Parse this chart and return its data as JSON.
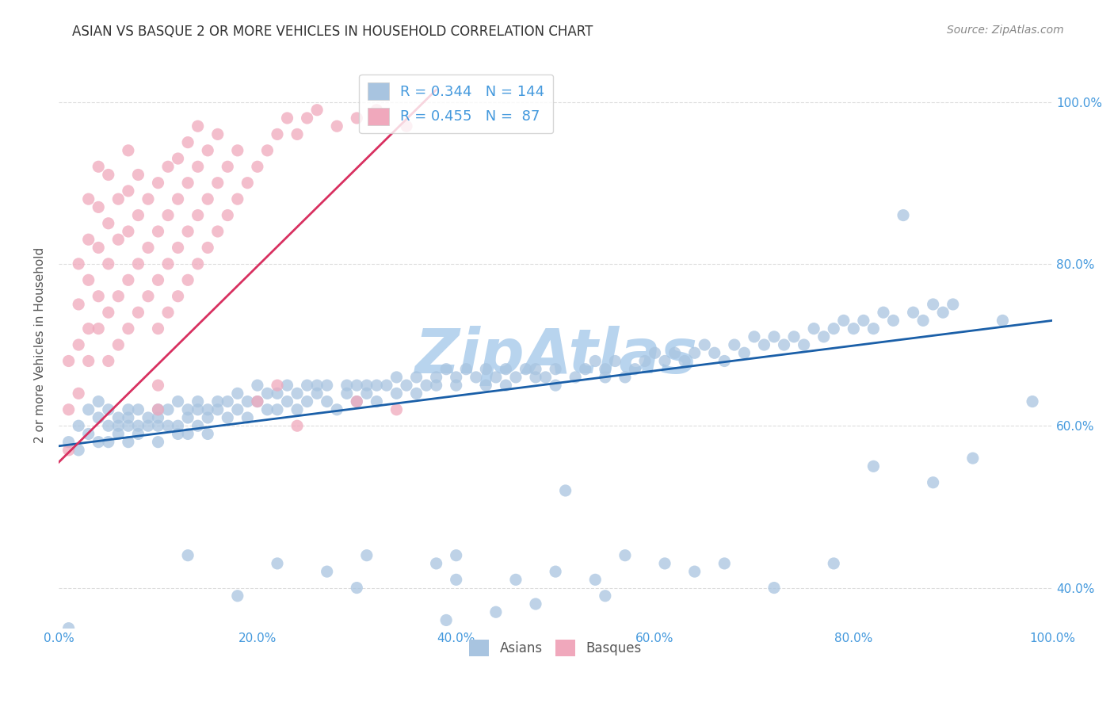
{
  "title": "ASIAN VS BASQUE 2 OR MORE VEHICLES IN HOUSEHOLD CORRELATION CHART",
  "source": "Source: ZipAtlas.com",
  "ylabel": "2 or more Vehicles in Household",
  "watermark": "ZipAtlas",
  "xlim": [
    0.0,
    1.0
  ],
  "ylim": [
    0.35,
    1.05
  ],
  "x_ticks": [
    0.0,
    0.2,
    0.4,
    0.6,
    0.8,
    1.0
  ],
  "x_tick_labels": [
    "0.0%",
    "20.0%",
    "40.0%",
    "60.0%",
    "80.0%",
    "100.0%"
  ],
  "y_ticks": [
    0.4,
    0.6,
    0.8,
    1.0
  ],
  "y_tick_labels": [
    "40.0%",
    "60.0%",
    "80.0%",
    "100.0%"
  ],
  "legend_labels": [
    "Asians",
    "Basques"
  ],
  "legend_R": [
    "0.344",
    "0.455"
  ],
  "legend_N": [
    "144",
    "87"
  ],
  "asian_color": "#a8c4e0",
  "basque_color": "#f0a8bc",
  "asian_line_color": "#1a5fa8",
  "basque_line_color": "#d83060",
  "title_color": "#333333",
  "axis_label_color": "#555555",
  "tick_color": "#4499dd",
  "grid_color": "#dddddd",
  "watermark_color": "#b8d4ee",
  "asian_scatter_x": [
    0.01,
    0.02,
    0.02,
    0.03,
    0.03,
    0.04,
    0.04,
    0.04,
    0.05,
    0.05,
    0.05,
    0.06,
    0.06,
    0.06,
    0.07,
    0.07,
    0.07,
    0.07,
    0.08,
    0.08,
    0.08,
    0.09,
    0.09,
    0.1,
    0.1,
    0.1,
    0.1,
    0.11,
    0.11,
    0.12,
    0.12,
    0.12,
    0.13,
    0.13,
    0.13,
    0.14,
    0.14,
    0.14,
    0.15,
    0.15,
    0.15,
    0.16,
    0.16,
    0.17,
    0.17,
    0.18,
    0.18,
    0.19,
    0.19,
    0.2,
    0.2,
    0.21,
    0.21,
    0.22,
    0.22,
    0.23,
    0.23,
    0.24,
    0.24,
    0.25,
    0.25,
    0.26,
    0.26,
    0.27,
    0.27,
    0.28,
    0.29,
    0.29,
    0.3,
    0.3,
    0.31,
    0.31,
    0.32,
    0.32,
    0.33,
    0.34,
    0.34,
    0.35,
    0.36,
    0.36,
    0.37,
    0.38,
    0.38,
    0.39,
    0.4,
    0.4,
    0.41,
    0.42,
    0.43,
    0.43,
    0.44,
    0.45,
    0.45,
    0.46,
    0.47,
    0.48,
    0.48,
    0.49,
    0.5,
    0.5,
    0.51,
    0.52,
    0.53,
    0.54,
    0.55,
    0.55,
    0.56,
    0.57,
    0.58,
    0.59,
    0.6,
    0.61,
    0.62,
    0.63,
    0.64,
    0.65,
    0.66,
    0.67,
    0.68,
    0.69,
    0.7,
    0.71,
    0.72,
    0.73,
    0.74,
    0.75,
    0.76,
    0.77,
    0.78,
    0.79,
    0.8,
    0.81,
    0.82,
    0.83,
    0.84,
    0.85,
    0.86,
    0.87,
    0.88,
    0.89,
    0.9,
    0.95,
    0.98
  ],
  "asian_scatter_y": [
    0.58,
    0.6,
    0.57,
    0.62,
    0.59,
    0.61,
    0.58,
    0.63,
    0.6,
    0.58,
    0.62,
    0.59,
    0.61,
    0.6,
    0.62,
    0.6,
    0.58,
    0.61,
    0.59,
    0.62,
    0.6,
    0.61,
    0.6,
    0.6,
    0.62,
    0.58,
    0.61,
    0.62,
    0.6,
    0.59,
    0.63,
    0.6,
    0.62,
    0.59,
    0.61,
    0.6,
    0.62,
    0.63,
    0.61,
    0.62,
    0.59,
    0.62,
    0.63,
    0.61,
    0.63,
    0.62,
    0.64,
    0.61,
    0.63,
    0.63,
    0.65,
    0.62,
    0.64,
    0.64,
    0.62,
    0.63,
    0.65,
    0.62,
    0.64,
    0.65,
    0.63,
    0.64,
    0.65,
    0.63,
    0.65,
    0.62,
    0.64,
    0.65,
    0.63,
    0.65,
    0.65,
    0.64,
    0.65,
    0.63,
    0.65,
    0.64,
    0.66,
    0.65,
    0.64,
    0.66,
    0.65,
    0.65,
    0.66,
    0.67,
    0.66,
    0.65,
    0.67,
    0.66,
    0.65,
    0.67,
    0.66,
    0.67,
    0.65,
    0.66,
    0.67,
    0.66,
    0.67,
    0.66,
    0.67,
    0.65,
    0.52,
    0.66,
    0.67,
    0.68,
    0.66,
    0.67,
    0.68,
    0.66,
    0.67,
    0.68,
    0.69,
    0.68,
    0.69,
    0.68,
    0.69,
    0.7,
    0.69,
    0.68,
    0.7,
    0.69,
    0.71,
    0.7,
    0.71,
    0.7,
    0.71,
    0.7,
    0.72,
    0.71,
    0.72,
    0.73,
    0.72,
    0.73,
    0.72,
    0.74,
    0.73,
    0.86,
    0.74,
    0.73,
    0.75,
    0.74,
    0.75,
    0.73,
    0.63
  ],
  "asian_low_x": [
    0.13,
    0.22,
    0.27,
    0.31,
    0.38,
    0.4,
    0.46,
    0.5,
    0.54,
    0.57,
    0.61,
    0.64,
    0.67,
    0.72,
    0.78,
    0.82,
    0.88,
    0.92,
    0.01,
    0.18,
    0.3,
    0.4,
    0.48,
    0.55,
    0.39,
    0.44
  ],
  "asian_low_y": [
    0.44,
    0.43,
    0.42,
    0.44,
    0.43,
    0.44,
    0.41,
    0.42,
    0.41,
    0.44,
    0.43,
    0.42,
    0.43,
    0.4,
    0.43,
    0.55,
    0.53,
    0.56,
    0.35,
    0.39,
    0.4,
    0.41,
    0.38,
    0.39,
    0.36,
    0.37
  ],
  "basque_scatter_x": [
    0.01,
    0.01,
    0.01,
    0.02,
    0.02,
    0.02,
    0.02,
    0.03,
    0.03,
    0.03,
    0.03,
    0.03,
    0.04,
    0.04,
    0.04,
    0.04,
    0.04,
    0.05,
    0.05,
    0.05,
    0.05,
    0.05,
    0.06,
    0.06,
    0.06,
    0.06,
    0.07,
    0.07,
    0.07,
    0.07,
    0.07,
    0.08,
    0.08,
    0.08,
    0.08,
    0.09,
    0.09,
    0.09,
    0.1,
    0.1,
    0.1,
    0.1,
    0.11,
    0.11,
    0.11,
    0.11,
    0.12,
    0.12,
    0.12,
    0.12,
    0.13,
    0.13,
    0.13,
    0.13,
    0.14,
    0.14,
    0.14,
    0.14,
    0.15,
    0.15,
    0.15,
    0.16,
    0.16,
    0.16,
    0.17,
    0.17,
    0.18,
    0.18,
    0.19,
    0.2,
    0.21,
    0.22,
    0.23,
    0.24,
    0.25,
    0.26,
    0.28,
    0.3,
    0.32,
    0.35,
    0.2,
    0.22,
    0.24,
    0.3,
    0.34,
    0.1,
    0.1
  ],
  "basque_scatter_y": [
    0.57,
    0.62,
    0.68,
    0.64,
    0.7,
    0.75,
    0.8,
    0.68,
    0.72,
    0.78,
    0.83,
    0.88,
    0.72,
    0.76,
    0.82,
    0.87,
    0.92,
    0.68,
    0.74,
    0.8,
    0.85,
    0.91,
    0.7,
    0.76,
    0.83,
    0.88,
    0.72,
    0.78,
    0.84,
    0.89,
    0.94,
    0.74,
    0.8,
    0.86,
    0.91,
    0.76,
    0.82,
    0.88,
    0.72,
    0.78,
    0.84,
    0.9,
    0.74,
    0.8,
    0.86,
    0.92,
    0.76,
    0.82,
    0.88,
    0.93,
    0.78,
    0.84,
    0.9,
    0.95,
    0.8,
    0.86,
    0.92,
    0.97,
    0.82,
    0.88,
    0.94,
    0.84,
    0.9,
    0.96,
    0.86,
    0.92,
    0.88,
    0.94,
    0.9,
    0.92,
    0.94,
    0.96,
    0.98,
    0.96,
    0.98,
    0.99,
    0.97,
    0.98,
    0.99,
    0.97,
    0.63,
    0.65,
    0.6,
    0.63,
    0.62,
    0.62,
    0.65
  ],
  "asian_trend_x0": 0.0,
  "asian_trend_x1": 1.0,
  "asian_trend_y0": 0.575,
  "asian_trend_y1": 0.73,
  "basque_trend_x0": 0.0,
  "basque_trend_x1": 0.38,
  "basque_trend_y0": 0.555,
  "basque_trend_y1": 1.015
}
